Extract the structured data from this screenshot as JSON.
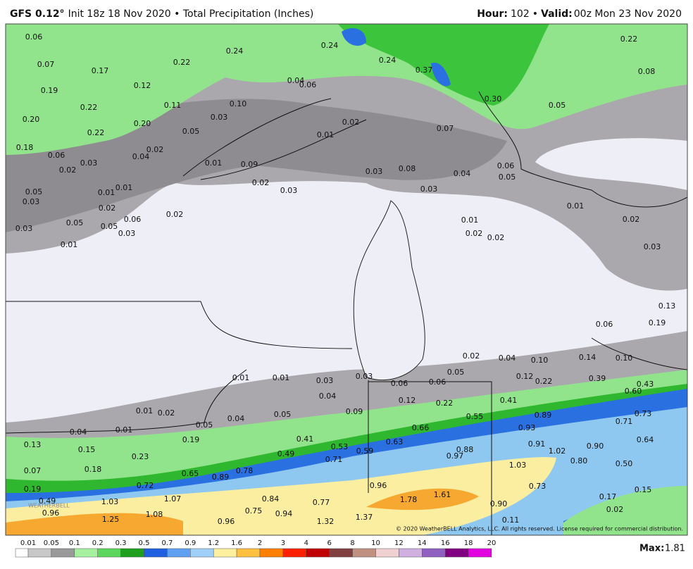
{
  "header": {
    "model": "GFS 0.12°",
    "init": "Init 18z 18 Nov 2020 • Total Precipitation (Inches)",
    "hour_label": "Hour:",
    "hour": "102",
    "sep": "•",
    "valid_label": "Valid:",
    "valid": "00z Mon 23 Nov 2020"
  },
  "map": {
    "labels": [
      "0.06",
      "0.07",
      "0.17",
      "0.24",
      "0.22",
      "0.24",
      "0.24",
      "0.37",
      "0.22",
      "0.08",
      "0.19",
      "0.12",
      "0.04",
      "0.06",
      "0.22",
      "0.11",
      "0.10",
      "0.30",
      "0.05",
      "0.20",
      "0.20",
      "0.03",
      "0.02",
      "0.07",
      "0.22",
      "0.05",
      "0.01",
      "0.18",
      "0.06",
      "0.04",
      "0.02",
      "0.01",
      "0.09",
      "0.03",
      "0.06",
      "0.02",
      "0.03",
      "0.08",
      "0.04",
      "0.05",
      "0.02",
      "0.01",
      "0.05",
      "0.01",
      "0.03",
      "0.03",
      "0.03",
      "0.02",
      "0.02",
      "0.01",
      "0.06",
      "0.05",
      "0.05",
      "0.01",
      "0.02",
      "0.03",
      "0.03",
      "0.02",
      "0.02",
      "0.01",
      "0.03",
      "0.13",
      "0.19",
      "0.06",
      "0.02",
      "0.04",
      "0.10",
      "0.14",
      "0.10",
      "0.05",
      "0.12",
      "0.22",
      "0.39",
      "0.43",
      "0.60",
      "0.01",
      "0.01",
      "0.03",
      "0.03",
      "0.06",
      "0.06",
      "0.04",
      "0.12",
      "0.22",
      "0.41",
      "0.09",
      "0.01",
      "0.02",
      "0.05",
      "0.89",
      "0.73",
      "0.04",
      "0.01",
      "0.05",
      "0.04",
      "0.55",
      "0.71",
      "0.93",
      "0.66",
      "0.41",
      "0.19",
      "0.13",
      "0.15",
      "0.53",
      "0.59",
      "0.63",
      "0.91",
      "0.64",
      "0.49",
      "0.23",
      "0.88",
      "1.02",
      "0.90",
      "0.97",
      "0.71",
      "0.80",
      "0.07",
      "0.18",
      "0.78",
      "0.65",
      "0.89",
      "1.03",
      "0.50",
      "0.19",
      "0.72",
      "0.96",
      "0.73",
      "0.15",
      "0.49",
      "1.03",
      "1.07",
      "0.84",
      "0.77",
      "1.78",
      "1.61",
      "0.17",
      "0.90",
      "0.02",
      "0.96",
      "1.08",
      "0.75",
      "0.94",
      "1.37",
      "1.25",
      "0.96",
      "1.32",
      "0.11"
    ],
    "copyright": "© 2020 WeatherBELL Analytics, LLC. All rights reserved. License required for commercial distribution.",
    "logo": "WEATHERBELL"
  },
  "legend": {
    "ticks": [
      0.01,
      0.05,
      0.1,
      0.2,
      0.3,
      0.5,
      0.7,
      0.9,
      1.2,
      1.6,
      2,
      3,
      4,
      6,
      8,
      10,
      12,
      14,
      16,
      18,
      20
    ],
    "colors": [
      "#ffffff",
      "#c8c8c8",
      "#9a9a9a",
      "#a6f0a0",
      "#5cd65c",
      "#1ea01e",
      "#2060e0",
      "#60a0f0",
      "#a0d0f8",
      "#fff0a0",
      "#ffc040",
      "#ff8000",
      "#ff2000",
      "#c00000",
      "#804040",
      "#c09080",
      "#f0d0d0",
      "#d0b0e0",
      "#9060c0",
      "#800080",
      "#e000e0"
    ],
    "max_label": "Max:",
    "max": 1.81
  }
}
